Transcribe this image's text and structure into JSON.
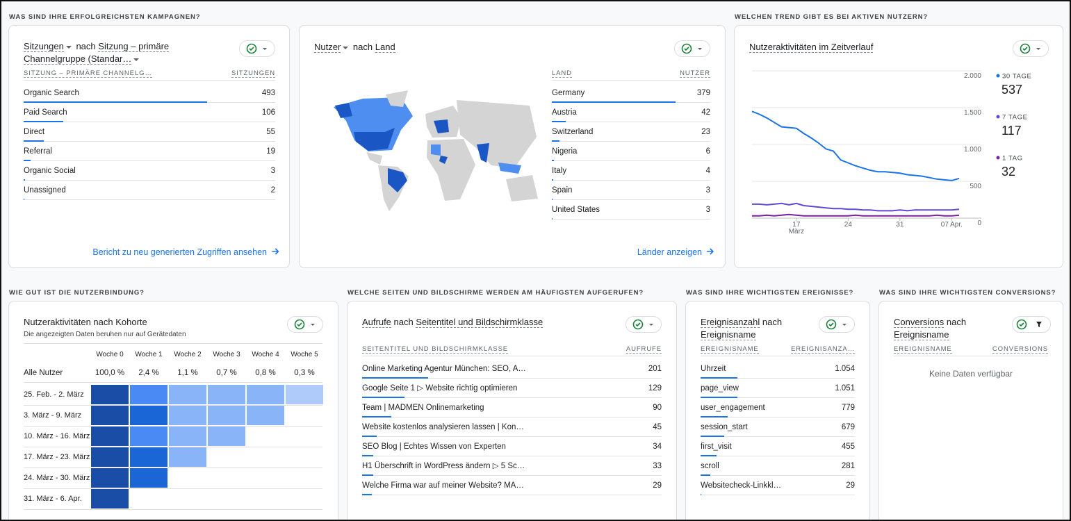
{
  "sections": {
    "campaigns": "WAS SIND IHRE ERFOLGREICHSTEN KAMPAGNEN?",
    "trend": "WELCHEN TREND GIBT ES BEI AKTIVEN NUTZERN?",
    "retention": "WIE GUT IST DIE NUTZERBINDUNG?",
    "pages": "WELCHE SEITEN UND BILDSCHIRME WERDEN AM HÄUFIGSTEN AUFGERUFEN?",
    "events": "WAS SIND IHRE WICHTIGSTEN EREIGNISSE?",
    "conversions": "WAS SIND IHRE WICHTIGSTEN CONVERSIONS?"
  },
  "channels": {
    "metric": "Sitzungen",
    "by": "nach",
    "dimension": "Sitzung – primäre Channelgruppe (Standar…",
    "columns": [
      "SITZUNG – PRIMÄRE CHANNELG…",
      "SITZUNGEN"
    ],
    "rows": [
      {
        "label": "Organic Search",
        "value": 493
      },
      {
        "label": "Paid Search",
        "value": 106
      },
      {
        "label": "Direct",
        "value": 55
      },
      {
        "label": "Referral",
        "value": 19
      },
      {
        "label": "Organic Social",
        "value": 3
      },
      {
        "label": "Unassigned",
        "value": 2
      }
    ],
    "link": "Bericht zu neu generierten Zugriffen ansehen"
  },
  "countries": {
    "metric": "Nutzer",
    "by": "nach",
    "dimension": "Land",
    "columns": [
      "LAND",
      "NUTZER"
    ],
    "rows": [
      {
        "label": "Germany",
        "value": 379
      },
      {
        "label": "Austria",
        "value": 42
      },
      {
        "label": "Switzerland",
        "value": 23
      },
      {
        "label": "Nigeria",
        "value": 6
      },
      {
        "label": "Italy",
        "value": 4
      },
      {
        "label": "Spain",
        "value": 3
      },
      {
        "label": "United States",
        "value": 3
      }
    ],
    "link": "Länder anzeigen"
  },
  "chart_data": {
    "type": "line",
    "title": "Nutzeraktivitäten im Zeitverlauf",
    "categories": [
      null,
      null,
      null,
      null,
      null,
      null,
      "17 März",
      null,
      null,
      null,
      null,
      null,
      null,
      "24",
      null,
      null,
      null,
      null,
      null,
      null,
      "31",
      null,
      null,
      null,
      null,
      null,
      null,
      "07 Apr.",
      null
    ],
    "series": [
      {
        "name": "30 TAGE",
        "total": 537,
        "color": "#1a73e8",
        "values": [
          1450,
          1410,
          1360,
          1300,
          1240,
          1230,
          1220,
          1150,
          1090,
          1020,
          940,
          910,
          790,
          750,
          710,
          680,
          650,
          630,
          630,
          620,
          610,
          590,
          580,
          570,
          550,
          530,
          520,
          510,
          540
        ]
      },
      {
        "name": "7 TAGE",
        "total": 117,
        "color": "#5b4ad8",
        "values": [
          190,
          190,
          180,
          190,
          200,
          180,
          200,
          170,
          160,
          150,
          140,
          130,
          130,
          120,
          120,
          110,
          110,
          100,
          100,
          100,
          110,
          100,
          110,
          110,
          110,
          110,
          110,
          110,
          120
        ]
      },
      {
        "name": "1 TAG",
        "total": 32,
        "color": "#7b1fa2",
        "values": [
          30,
          30,
          40,
          30,
          40,
          50,
          40,
          30,
          30,
          30,
          30,
          30,
          30,
          30,
          40,
          30,
          30,
          30,
          30,
          30,
          30,
          30,
          30,
          30,
          30,
          40,
          30,
          30,
          40
        ]
      }
    ],
    "ylim": [
      0,
      2000
    ],
    "yticks": [
      0,
      500,
      {
        "value": 1000,
        "label": "1.000"
      },
      {
        "value": 1500,
        "label": "1.500"
      },
      {
        "value": 2000,
        "label": "2.000"
      }
    ],
    "grid": true
  },
  "cohort": {
    "title": "Nutzeraktivitäten nach Kohorte",
    "subtitle": "Die angezeigten Daten beruhen nur auf Gerätedaten",
    "columns": [
      "Woche 0",
      "Woche 1",
      "Woche 2",
      "Woche 3",
      "Woche 4",
      "Woche 5"
    ],
    "all_label": "Alle Nutzer",
    "all_values": [
      "100,0 %",
      "2,4 %",
      "1,1 %",
      "0,7 %",
      "0,8 %",
      "0,3 %"
    ],
    "rows": [
      "25. Feb. - 2. März",
      "3. März - 9. März",
      "10. März - 16. März",
      "17. März - 23. März",
      "24. März - 30. März",
      "31. März - 6. Apr."
    ],
    "colors": [
      [
        "#1a4ea6",
        "#4a8af4",
        "#8ab4f8",
        "#8ab4f8",
        "#8ab4f8",
        "#aecbfa"
      ],
      [
        "#1a4ea6",
        "#1a66d6",
        "#8ab4f8",
        "#8ab4f8",
        "#8ab4f8"
      ],
      [
        "#1a4ea6",
        "#4a8af4",
        "#8ab4f8",
        "#8ab4f8"
      ],
      [
        "#1a4ea6",
        "#1a66d6",
        "#8ab4f8"
      ],
      [
        "#1a4ea6",
        "#1a66d6"
      ],
      [
        "#1a4ea6"
      ]
    ]
  },
  "pages": {
    "metric": "Aufrufe",
    "by": "nach",
    "dimension": "Seitentitel und Bildschirmklasse",
    "columns": [
      "SEITENTITEL UND BILDSCHIRMKLASSE",
      "AUFRUFE"
    ],
    "rows": [
      {
        "label": "Online Marketing Agentur München: SEO, A…",
        "value": 201
      },
      {
        "label": "Google Seite 1 ▷ Website richtig optimieren",
        "value": 129
      },
      {
        "label": "Team | MADMEN Onlinemarketing",
        "value": 90
      },
      {
        "label": "Website kostenlos analysieren lassen | Kon…",
        "value": 45
      },
      {
        "label": "SEO Blog | Echtes Wissen von Experten",
        "value": 34
      },
      {
        "label": "H1 Überschrift in WordPress ändern ▷ 5 Sc…",
        "value": 33
      },
      {
        "label": "Welche Firma war auf meiner Website? MA…",
        "value": 29
      }
    ]
  },
  "events": {
    "metric": "Ereignisanzahl",
    "by": "nach",
    "dimension": "Ereignisname",
    "columns": [
      "EREIGNISNAME",
      "EREIGNISANZA…"
    ],
    "rows": [
      {
        "label": "Uhrzeit",
        "value": 1054,
        "value_label": "1.054"
      },
      {
        "label": "page_view",
        "value": 1051,
        "value_label": "1.051"
      },
      {
        "label": "user_engagement",
        "value": 779
      },
      {
        "label": "session_start",
        "value": 679
      },
      {
        "label": "first_visit",
        "value": 455
      },
      {
        "label": "scroll",
        "value": 281
      },
      {
        "label": "Websitecheck-Linkkl…",
        "value": 29
      }
    ]
  },
  "conversions": {
    "metric": "Conversions",
    "by": "nach",
    "dimension": "Ereignisname",
    "columns": [
      "EREIGNISNAME",
      "CONVERSIONS"
    ],
    "empty": "Keine Daten verfügbar"
  }
}
